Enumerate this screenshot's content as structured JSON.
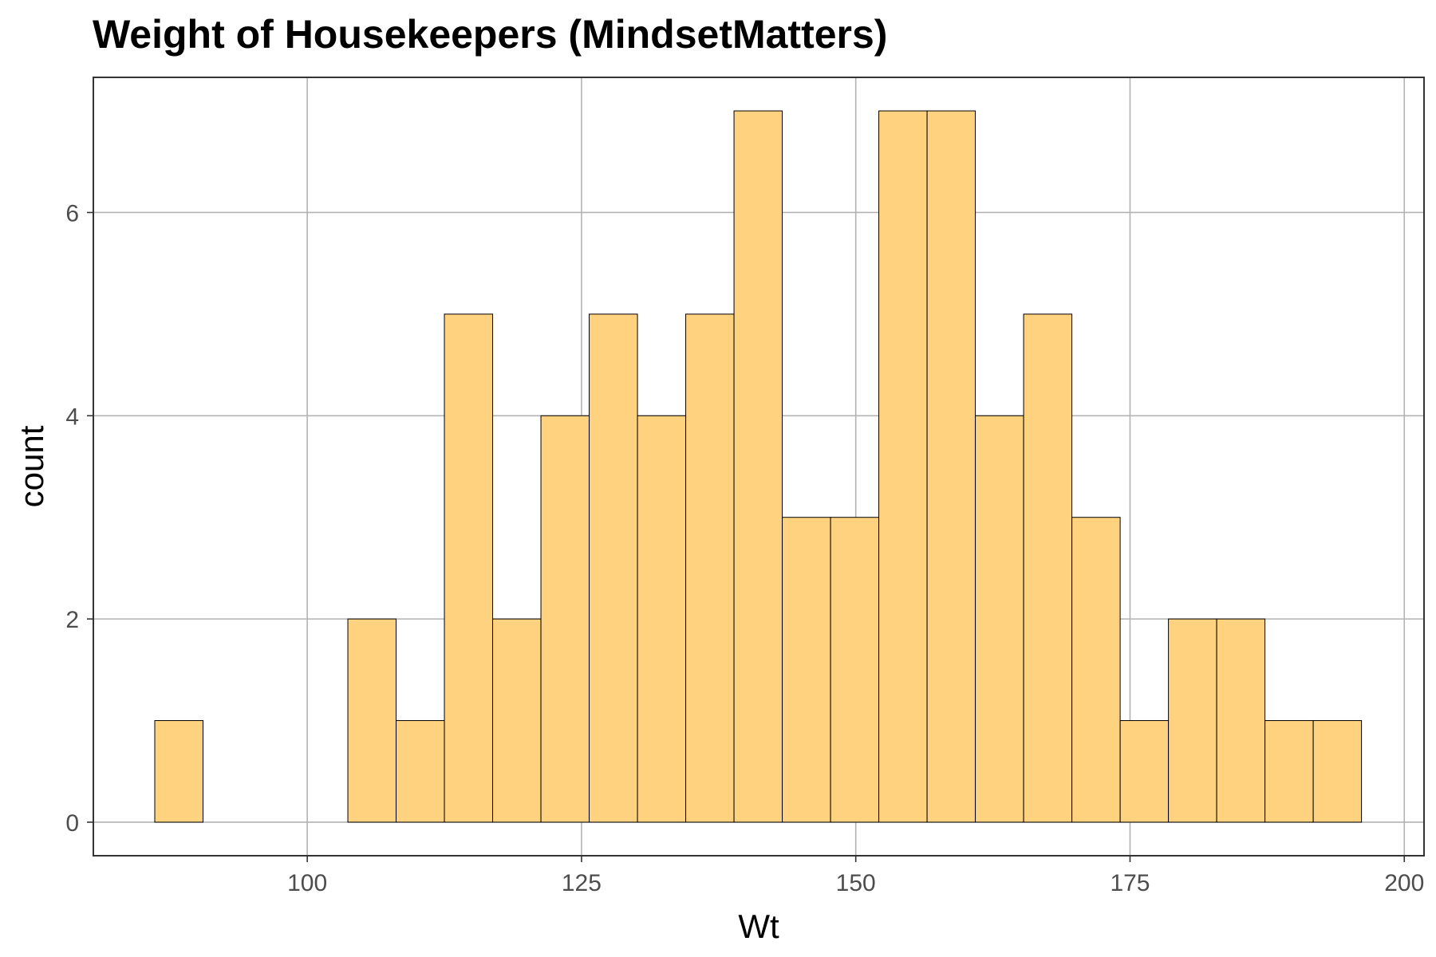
{
  "chart_data": {
    "type": "bar",
    "title": "Weight of Housekeepers (MindsetMatters)",
    "xlabel": "Wt",
    "ylabel": "count",
    "xlim": [
      80.5,
      201.8
    ],
    "ylim": [
      -0.33,
      7.33
    ],
    "x_ticks": [
      100,
      125,
      150,
      175,
      200
    ],
    "y_ticks": [
      0,
      2,
      4,
      6
    ],
    "bin_width": 4.4,
    "bins": [
      {
        "x0": 86.1,
        "x1": 90.5,
        "count": 1
      },
      {
        "x0": 90.5,
        "x1": 94.9,
        "count": 0
      },
      {
        "x0": 94.9,
        "x1": 99.3,
        "count": 0
      },
      {
        "x0": 99.3,
        "x1": 103.7,
        "count": 0
      },
      {
        "x0": 103.7,
        "x1": 108.1,
        "count": 2
      },
      {
        "x0": 108.1,
        "x1": 112.5,
        "count": 1
      },
      {
        "x0": 112.5,
        "x1": 116.9,
        "count": 5
      },
      {
        "x0": 116.9,
        "x1": 121.3,
        "count": 2
      },
      {
        "x0": 121.3,
        "x1": 125.7,
        "count": 4
      },
      {
        "x0": 125.7,
        "x1": 130.1,
        "count": 5
      },
      {
        "x0": 130.1,
        "x1": 134.5,
        "count": 4
      },
      {
        "x0": 134.5,
        "x1": 138.9,
        "count": 5
      },
      {
        "x0": 138.9,
        "x1": 143.3,
        "count": 7
      },
      {
        "x0": 143.3,
        "x1": 147.7,
        "count": 3
      },
      {
        "x0": 147.7,
        "x1": 152.1,
        "count": 3
      },
      {
        "x0": 152.1,
        "x1": 156.5,
        "count": 7
      },
      {
        "x0": 156.5,
        "x1": 160.9,
        "count": 7
      },
      {
        "x0": 160.9,
        "x1": 165.3,
        "count": 4
      },
      {
        "x0": 165.3,
        "x1": 169.7,
        "count": 5
      },
      {
        "x0": 169.7,
        "x1": 174.1,
        "count": 3
      },
      {
        "x0": 174.1,
        "x1": 178.5,
        "count": 1
      },
      {
        "x0": 178.5,
        "x1": 182.9,
        "count": 2
      },
      {
        "x0": 182.9,
        "x1": 187.3,
        "count": 2
      },
      {
        "x0": 187.3,
        "x1": 191.7,
        "count": 1
      },
      {
        "x0": 191.7,
        "x1": 196.1,
        "count": 1
      }
    ],
    "grid": true,
    "legend": "none",
    "colors": {
      "bar_fill": "#ffd27f",
      "bar_outline": "#000000",
      "grid": "#b3b3b3",
      "panel_border": "#333333",
      "tick_label": "#4d4d4d"
    }
  }
}
